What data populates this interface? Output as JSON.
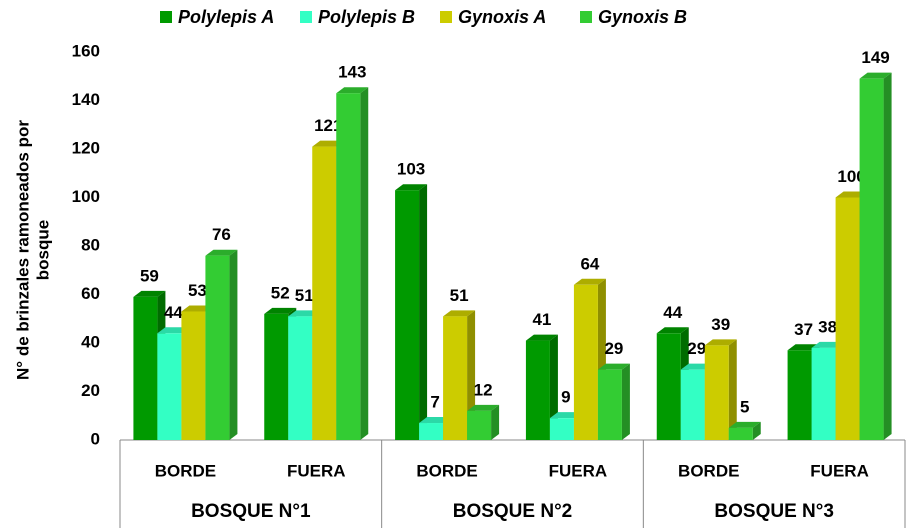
{
  "chart_data": {
    "type": "bar3d",
    "categories": [
      "BORDE",
      "FUERA",
      "BORDE",
      "FUERA",
      "BORDE",
      "FUERA"
    ],
    "groups": [
      "BOSQUE N°1",
      "BOSQUE N°2",
      "BOSQUE N°3"
    ],
    "ylabel": [
      "N° de brinzales ramoneados por",
      "bosque"
    ],
    "series": [
      {
        "name": "Polylepis A",
        "color": "#009a00",
        "values": [
          59,
          52,
          103,
          41,
          44,
          37
        ]
      },
      {
        "name": "Polylepis B",
        "color": "#33ffc4",
        "values": [
          44,
          51,
          7,
          9,
          29,
          38
        ]
      },
      {
        "name": "Gynoxis A",
        "color": "#cccc00",
        "values": [
          53,
          121,
          51,
          64,
          39,
          100
        ]
      },
      {
        "name": "Gynoxis B",
        "color": "#33cc33",
        "values": [
          76,
          143,
          12,
          29,
          5,
          149
        ]
      }
    ],
    "ylim": [
      0,
      160
    ],
    "yticks": [
      0,
      20,
      40,
      60,
      80,
      100,
      120,
      140,
      160
    ],
    "legend": "top"
  }
}
